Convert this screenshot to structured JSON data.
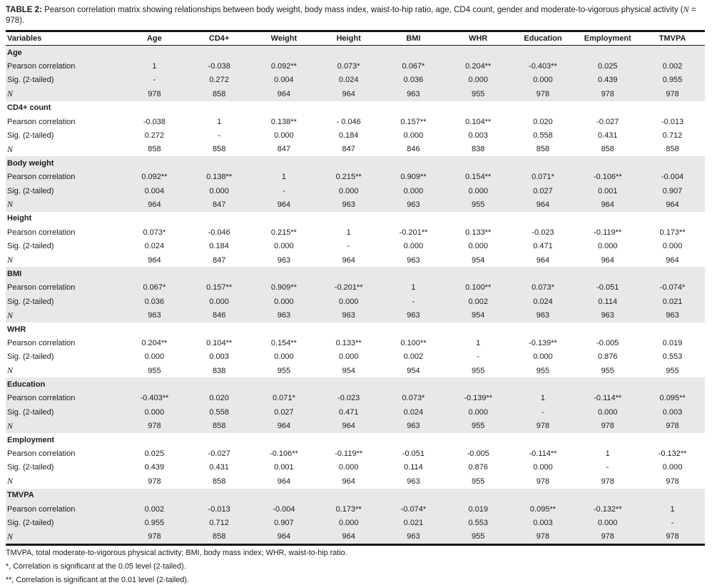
{
  "title": {
    "label": "TABLE 2:",
    "body": " Pearson correlation matrix showing relationships between body weight, body mass index, waist-to-hip ratio, age, CD4 count, gender and moderate-to-vigorous physical activity (",
    "n": "N",
    "suffix": " = 978)."
  },
  "table": {
    "columns": [
      "Variables",
      "Age",
      "CD4+",
      "Weight",
      "Height",
      "BMI",
      "WHR",
      "Education",
      "Employment",
      "TMVPA"
    ],
    "row_labels": [
      "Pearson correlation",
      "Sig. (2-tailed)",
      "N"
    ],
    "groups": [
      {
        "name": "Age",
        "rows": [
          [
            "1",
            "-0.038",
            "0.092**",
            "0.073*",
            "0.067*",
            "0.204**",
            "-0.403**",
            "0.025",
            "0.002"
          ],
          [
            "-",
            "0.272",
            "0.004",
            "0.024",
            "0.036",
            "0.000",
            "0.000",
            "0.439",
            "0.955"
          ],
          [
            "978",
            "858",
            "964",
            "964",
            "963",
            "955",
            "978",
            "978",
            "978"
          ]
        ]
      },
      {
        "name": "CD4+ count",
        "rows": [
          [
            "-0.038",
            "1",
            "0.138**",
            "- 0.046",
            "0.157**",
            "0.104**",
            "0.020",
            "-0.027",
            "-0.013"
          ],
          [
            "0.272",
            "-",
            "0.000",
            "0.184",
            "0.000",
            "0.003",
            "0.558",
            "0.431",
            "0.712"
          ],
          [
            "858",
            "858",
            "847",
            "847",
            "846",
            "838",
            "858",
            "858",
            "858"
          ]
        ]
      },
      {
        "name": "Body weight",
        "rows": [
          [
            "0.092**",
            "0.138**",
            "1",
            "0.215**",
            "0.909**",
            "0.154**",
            "0.071*",
            "-0.106**",
            "-0.004"
          ],
          [
            "0.004",
            "0.000",
            "-",
            "0.000",
            "0.000",
            "0.000",
            "0.027",
            "0.001",
            "0.907"
          ],
          [
            "964",
            "847",
            "964",
            "963",
            "963",
            "955",
            "964",
            "964",
            "964"
          ]
        ]
      },
      {
        "name": "Height",
        "rows": [
          [
            "0.073*",
            "-0.046",
            "0.215**",
            "1",
            "-0.201**",
            "0.133**",
            "-0.023",
            "-0.119**",
            "0.173**"
          ],
          [
            "0.024",
            "0.184",
            "0.000",
            "-",
            "0.000",
            "0.000",
            "0.471",
            "0.000",
            "0.000"
          ],
          [
            "964",
            "847",
            "963",
            "964",
            "963",
            "954",
            "964",
            "964",
            "964"
          ]
        ]
      },
      {
        "name": "BMI",
        "rows": [
          [
            "0.067*",
            "0.157**",
            "0.909**",
            "-0.201**",
            "1",
            "0.100**",
            "0.073*",
            "-0.051",
            "-0.074*"
          ],
          [
            "0.036",
            "0.000",
            "0.000",
            "0.000",
            "-",
            "0.002",
            "0.024",
            "0.114",
            "0.021"
          ],
          [
            "963",
            "846",
            "963",
            "963",
            "963",
            "954",
            "963",
            "963",
            "963"
          ]
        ]
      },
      {
        "name": "WHR",
        "rows": [
          [
            "0.204**",
            "0.104**",
            "0.154**",
            "0.133**",
            "0.100**",
            "1",
            "-0.139**",
            "-0.005",
            "0.019"
          ],
          [
            "0.000",
            "0.003",
            "0.000",
            "0.000",
            "0.002",
            "-",
            "0.000",
            "0.876",
            "0.553"
          ],
          [
            "955",
            "838",
            "955",
            "954",
            "954",
            "955",
            "955",
            "955",
            "955"
          ]
        ]
      },
      {
        "name": "Education",
        "rows": [
          [
            "-0.403**",
            "0.020",
            "0.071*",
            "-0.023",
            "0.073*",
            "-0.139**",
            "1",
            "-0.114**",
            "0.095**"
          ],
          [
            "0.000",
            "0.558",
            "0.027",
            "0.471",
            "0.024",
            "0.000",
            "-",
            "0.000",
            "0.003"
          ],
          [
            "978",
            "858",
            "964",
            "964",
            "963",
            "955",
            "978",
            "978",
            "978"
          ]
        ]
      },
      {
        "name": "Employment",
        "rows": [
          [
            "0.025",
            "-0.027",
            "-0.106**",
            "-0.119**",
            "-0.051",
            "-0.005",
            "-0.114**",
            "1",
            "-0.132**"
          ],
          [
            "0.439",
            "0.431",
            "0.001",
            "0.000",
            "0.114",
            "0.876",
            "0.000",
            "-",
            "0.000"
          ],
          [
            "978",
            "858",
            "964",
            "964",
            "963",
            "955",
            "978",
            "978",
            "978"
          ]
        ]
      },
      {
        "name": "TMVPA",
        "rows": [
          [
            "0.002",
            "-0.013",
            "-0.004",
            "0.173**",
            "-0.074*",
            "0.019",
            "0.095**",
            "-0.132**",
            "1"
          ],
          [
            "0.955",
            "0.712",
            "0.907",
            "0.000",
            "0.021",
            "0.553",
            "0.003",
            "0.000",
            "-"
          ],
          [
            "978",
            "858",
            "964",
            "964",
            "963",
            "955",
            "978",
            "978",
            "978"
          ]
        ]
      }
    ]
  },
  "footnotes": [
    "TMVPA, total moderate-to-vigorous physical activity; BMI, body mass index; WHR, waist-to-hip ratio.",
    "*, Correlation is significant at the 0.05 level (2-tailed).",
    "**, Correlation is significant at the 0.01 level (2-tailed)."
  ],
  "colors": {
    "shaded_row": "#e8e8e8",
    "rule": "#161616",
    "text": "#1c1c1c"
  }
}
